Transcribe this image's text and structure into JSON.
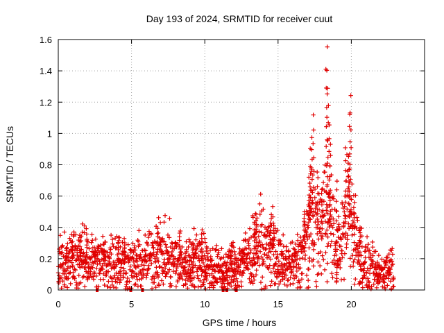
{
  "chart_data": {
    "type": "scatter",
    "title": "Day 193 of 2024, SRMTID for receiver cuut",
    "xlabel": "GPS time / hours",
    "ylabel": "SRMTID / TECUs",
    "xlim": [
      0,
      25
    ],
    "ylim": [
      0,
      1.6
    ],
    "x_ticks": [
      0,
      5,
      10,
      15,
      20
    ],
    "x_tick_labels": [
      "0",
      "5",
      "10",
      "15",
      "20"
    ],
    "y_ticks": [
      0,
      0.2,
      0.4,
      0.6,
      0.8,
      1.0,
      1.2,
      1.4,
      1.6
    ],
    "y_tick_labels": [
      "0",
      "0.2",
      "0.4",
      "0.6",
      "0.8",
      "1",
      "1.2",
      "1.4",
      "1.6"
    ],
    "grid": true,
    "marker": "plus",
    "color": "#e00000",
    "series": [
      {
        "name": "SRMTID",
        "profile": [
          [
            0.0,
            0.16
          ],
          [
            1.0,
            0.2
          ],
          [
            2.0,
            0.19
          ],
          [
            3.0,
            0.17
          ],
          [
            4.0,
            0.19
          ],
          [
            5.0,
            0.15
          ],
          [
            6.0,
            0.18
          ],
          [
            6.8,
            0.24
          ],
          [
            7.5,
            0.2
          ],
          [
            8.5,
            0.16
          ],
          [
            9.5,
            0.2
          ],
          [
            10.5,
            0.14
          ],
          [
            11.5,
            0.12
          ],
          [
            12.5,
            0.17
          ],
          [
            13.3,
            0.24
          ],
          [
            13.7,
            0.3
          ],
          [
            14.2,
            0.22
          ],
          [
            14.6,
            0.3
          ],
          [
            15.0,
            0.17
          ],
          [
            16.0,
            0.15
          ],
          [
            16.5,
            0.2
          ],
          [
            16.9,
            0.3
          ],
          [
            17.3,
            0.5
          ],
          [
            17.7,
            0.35
          ],
          [
            18.0,
            0.4
          ],
          [
            18.3,
            0.55
          ],
          [
            18.6,
            0.4
          ],
          [
            19.0,
            0.25
          ],
          [
            19.5,
            0.35
          ],
          [
            19.8,
            0.55
          ],
          [
            20.2,
            0.35
          ],
          [
            20.6,
            0.22
          ],
          [
            21.0,
            0.15
          ],
          [
            21.8,
            0.1
          ],
          [
            22.5,
            0.14
          ],
          [
            22.9,
            0.16
          ]
        ],
        "peaks": [
          [
            0.55,
            0.27
          ],
          [
            1.0,
            0.3
          ],
          [
            1.5,
            0.35
          ],
          [
            1.95,
            0.39
          ],
          [
            2.5,
            0.27
          ],
          [
            3.1,
            0.3
          ],
          [
            4.1,
            0.33
          ],
          [
            4.5,
            0.33
          ],
          [
            6.8,
            0.37
          ],
          [
            8.3,
            0.37
          ],
          [
            9.2,
            0.3
          ],
          [
            9.8,
            0.39
          ],
          [
            11.8,
            0.3
          ],
          [
            12.6,
            0.26
          ],
          [
            13.4,
            0.44
          ],
          [
            13.5,
            0.48
          ],
          [
            14.5,
            0.46
          ],
          [
            14.7,
            0.43
          ],
          [
            16.8,
            0.51
          ],
          [
            17.1,
            0.6
          ],
          [
            17.2,
            0.78
          ],
          [
            17.3,
            0.97
          ],
          [
            17.4,
            1.12
          ],
          [
            17.7,
            0.72
          ],
          [
            18.0,
            0.65
          ],
          [
            18.3,
            1.41
          ],
          [
            18.35,
            1.55
          ],
          [
            18.4,
            1.29
          ],
          [
            18.5,
            1.06
          ],
          [
            18.55,
            0.94
          ],
          [
            19.0,
            0.7
          ],
          [
            19.6,
            0.9
          ],
          [
            19.8,
            0.85
          ],
          [
            19.9,
            1.13
          ],
          [
            19.95,
            1.25
          ],
          [
            20.2,
            0.6
          ],
          [
            20.6,
            0.4
          ]
        ],
        "dips": [
          [
            8.7,
            0.03
          ],
          [
            9.0,
            0.05
          ],
          [
            10.1,
            0.06
          ],
          [
            11.25,
            0.01
          ],
          [
            11.5,
            0.04
          ],
          [
            12.0,
            0.06
          ],
          [
            15.3,
            0.06
          ],
          [
            17.1,
            0.06
          ],
          [
            19.0,
            0.07
          ],
          [
            21.8,
            0.04
          ]
        ],
        "gap_markers_x": [
          2.65,
          4.95,
          5.75,
          11.25,
          11.5,
          12.15
        ]
      }
    ]
  }
}
